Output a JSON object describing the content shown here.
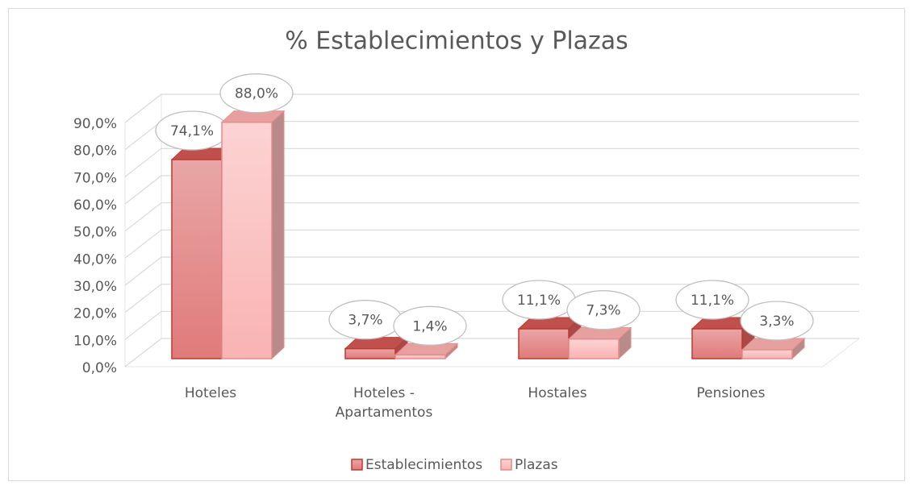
{
  "chart_data": {
    "type": "bar3d",
    "title": "% Establecimientos y Plazas",
    "categories": [
      "Hoteles",
      "Hoteles - Apartamentos",
      "Hostales",
      "Pensiones"
    ],
    "series": [
      {
        "name": "Establecimientos",
        "color": "#e08080",
        "values": [
          74.1,
          3.7,
          11.1,
          11.1
        ],
        "value_labels": [
          "74,1%",
          "3,7%",
          "11,1%",
          "11,1%"
        ]
      },
      {
        "name": "Plazas",
        "color": "#fbbcbc",
        "values": [
          88.0,
          1.4,
          7.3,
          3.3
        ],
        "value_labels": [
          "88,0%",
          "1,4%",
          "7,3%",
          "3,3%"
        ]
      }
    ],
    "ylim": [
      0,
      90
    ],
    "yticks": [
      {
        "value": 0,
        "label": "0,0%"
      },
      {
        "value": 10,
        "label": "10,0%"
      },
      {
        "value": 20,
        "label": "20,0%"
      },
      {
        "value": 30,
        "label": "30,0%"
      },
      {
        "value": 40,
        "label": "40,0%"
      },
      {
        "value": 50,
        "label": "50,0%"
      },
      {
        "value": 60,
        "label": "60,0%"
      },
      {
        "value": 70,
        "label": "70,0%"
      },
      {
        "value": 80,
        "label": "80,0%"
      },
      {
        "value": 90,
        "label": "90,0%"
      }
    ],
    "grid": true,
    "legend": "bottom"
  }
}
